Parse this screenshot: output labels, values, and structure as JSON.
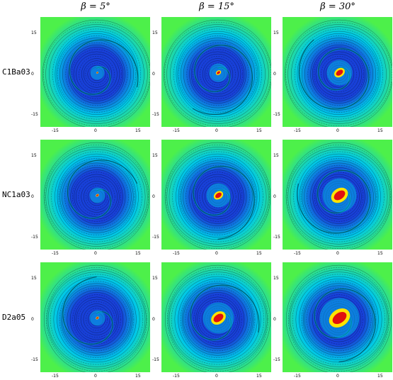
{
  "columns": [
    {
      "label": "β = 5°",
      "beta_deg": 5
    },
    {
      "label": "β = 15°",
      "beta_deg": 15
    },
    {
      "label": "β = 30°",
      "beta_deg": 30
    }
  ],
  "rows": [
    {
      "label": "C1Ba03"
    },
    {
      "label": "NC1a03"
    },
    {
      "label": "D2a05"
    }
  ],
  "axis": {
    "x_ticks": [
      "-15",
      "0",
      "15"
    ],
    "y_ticks": [
      "15",
      "0",
      "-15"
    ],
    "range": [
      -18,
      18
    ]
  },
  "colors": {
    "outer": "#4df04a",
    "mid": "#00c8e8",
    "inner": "#1840d8",
    "hot": "#ffe400",
    "core": "#e01010",
    "contour": "#000000"
  }
}
